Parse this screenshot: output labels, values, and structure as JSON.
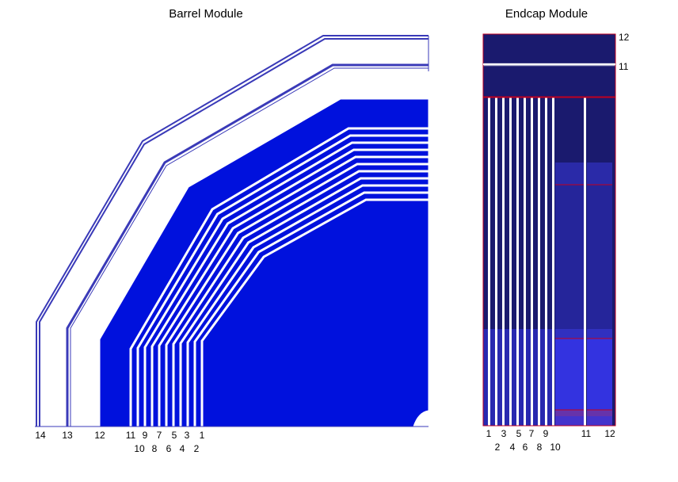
{
  "barrel": {
    "title": "Barrel Module",
    "labels_row1": [
      "14",
      "13",
      "12",
      "11",
      "9",
      "7",
      "5",
      "3",
      "1"
    ],
    "labels_row2": [
      "10",
      "8",
      "6",
      "4",
      "2"
    ]
  },
  "endcap": {
    "title": "Endcap Module",
    "side_labels": [
      "12",
      "11"
    ],
    "labels_row1": [
      "1",
      "3",
      "5",
      "7",
      "9",
      "11",
      "12"
    ],
    "labels_row2": [
      "2",
      "4",
      "6",
      "8",
      "10"
    ]
  },
  "colors": {
    "fill_blue": "#0011dd",
    "dark_navy": "#1a1a6e",
    "mid_blue": "#2a2aa8",
    "light_blue": "#3333e0",
    "purple": "#6633aa",
    "edge_red": "#c00020",
    "outline_blue": "#3a3ab8"
  }
}
